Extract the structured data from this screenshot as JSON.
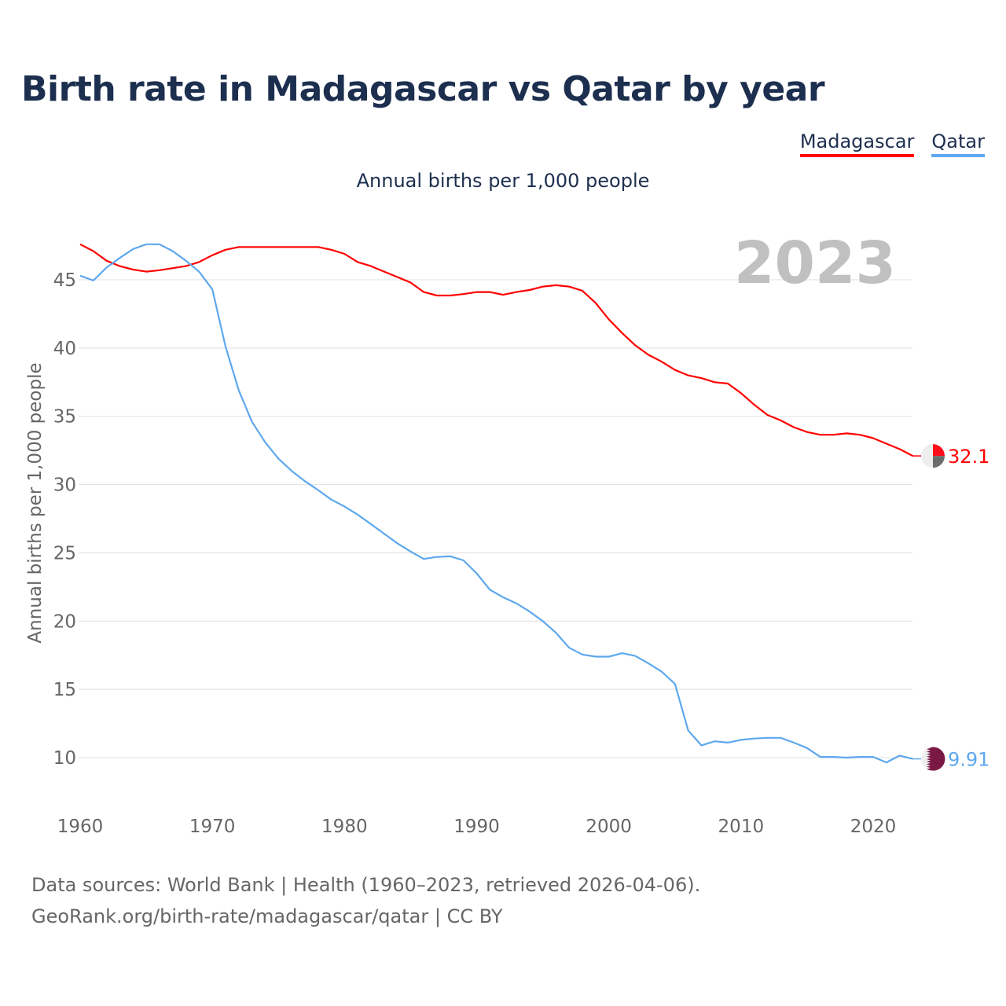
{
  "title": "Birth rate in Madagascar vs Qatar by year",
  "subtitle": "Annual births per 1,000 people",
  "footer": {
    "line1": "Data sources: World Bank | Health (1960–2023, retrieved 2026-04-06).",
    "line2": "GeoRank.org/birth-rate/madagascar/qatar | CC BY"
  },
  "year_label": "2023",
  "chart_data": {
    "type": "line",
    "title": "Birth rate in Madagascar vs Qatar by year",
    "xlabel": "",
    "ylabel": "Annual births per 1,000 people",
    "xlim": [
      1960,
      2023
    ],
    "ylim": [
      7,
      48
    ],
    "grid": true,
    "legend_position": "top-right",
    "x_ticks": [
      "1960",
      "1970",
      "1980",
      "1990",
      "2000",
      "2010",
      "2020"
    ],
    "y_ticks": [
      "10",
      "15",
      "20",
      "25",
      "30",
      "35",
      "40",
      "45"
    ],
    "x": [
      1960,
      1961,
      1962,
      1963,
      1964,
      1965,
      1966,
      1967,
      1968,
      1969,
      1970,
      1971,
      1972,
      1973,
      1974,
      1975,
      1976,
      1977,
      1978,
      1979,
      1980,
      1981,
      1982,
      1983,
      1984,
      1985,
      1986,
      1987,
      1988,
      1989,
      1990,
      1991,
      1992,
      1993,
      1994,
      1995,
      1996,
      1997,
      1998,
      1999,
      2000,
      2001,
      2002,
      2003,
      2004,
      2005,
      2006,
      2007,
      2008,
      2009,
      2010,
      2011,
      2012,
      2013,
      2014,
      2015,
      2016,
      2017,
      2018,
      2019,
      2020,
      2021,
      2022,
      2023
    ],
    "series": [
      {
        "name": "Madagascar",
        "color": "#ff0000",
        "end_label": "32.1",
        "values": [
          47.6,
          47.1,
          46.4,
          46.0,
          45.75,
          45.6,
          45.7,
          45.85,
          46.0,
          46.3,
          46.8,
          47.2,
          47.4,
          47.4,
          47.4,
          47.4,
          47.4,
          47.4,
          47.4,
          47.2,
          46.9,
          46.3,
          46.0,
          45.6,
          45.2,
          44.8,
          44.1,
          43.85,
          43.85,
          43.95,
          44.1,
          44.1,
          43.9,
          44.1,
          44.25,
          44.5,
          44.6,
          44.5,
          44.2,
          43.3,
          42.1,
          41.1,
          40.2,
          39.5,
          39.0,
          38.4,
          38.0,
          37.8,
          37.5,
          37.4,
          36.7,
          35.85,
          35.1,
          34.7,
          34.2,
          33.85,
          33.65,
          33.65,
          33.75,
          33.65,
          33.4,
          33.0,
          32.6,
          32.1
        ]
      },
      {
        "name": "Qatar",
        "color": "#5ea8ee",
        "end_label": "9.91",
        "values": [
          45.3,
          44.95,
          45.9,
          46.6,
          47.25,
          47.6,
          47.6,
          47.1,
          46.4,
          45.6,
          44.3,
          40.1,
          36.9,
          34.6,
          33.1,
          31.9,
          31.0,
          30.25,
          29.6,
          28.9,
          28.4,
          27.8,
          27.1,
          26.4,
          25.7,
          25.1,
          24.55,
          24.7,
          24.75,
          24.45,
          23.5,
          22.3,
          21.75,
          21.3,
          20.7,
          20.0,
          19.15,
          18.05,
          17.55,
          17.4,
          17.4,
          17.65,
          17.45,
          16.9,
          16.3,
          15.4,
          12.0,
          10.9,
          11.2,
          11.1,
          11.3,
          11.4,
          11.45,
          11.45,
          11.1,
          10.7,
          10.05,
          10.05,
          10.0,
          10.05,
          10.05,
          9.65,
          10.15,
          9.91
        ]
      }
    ]
  }
}
